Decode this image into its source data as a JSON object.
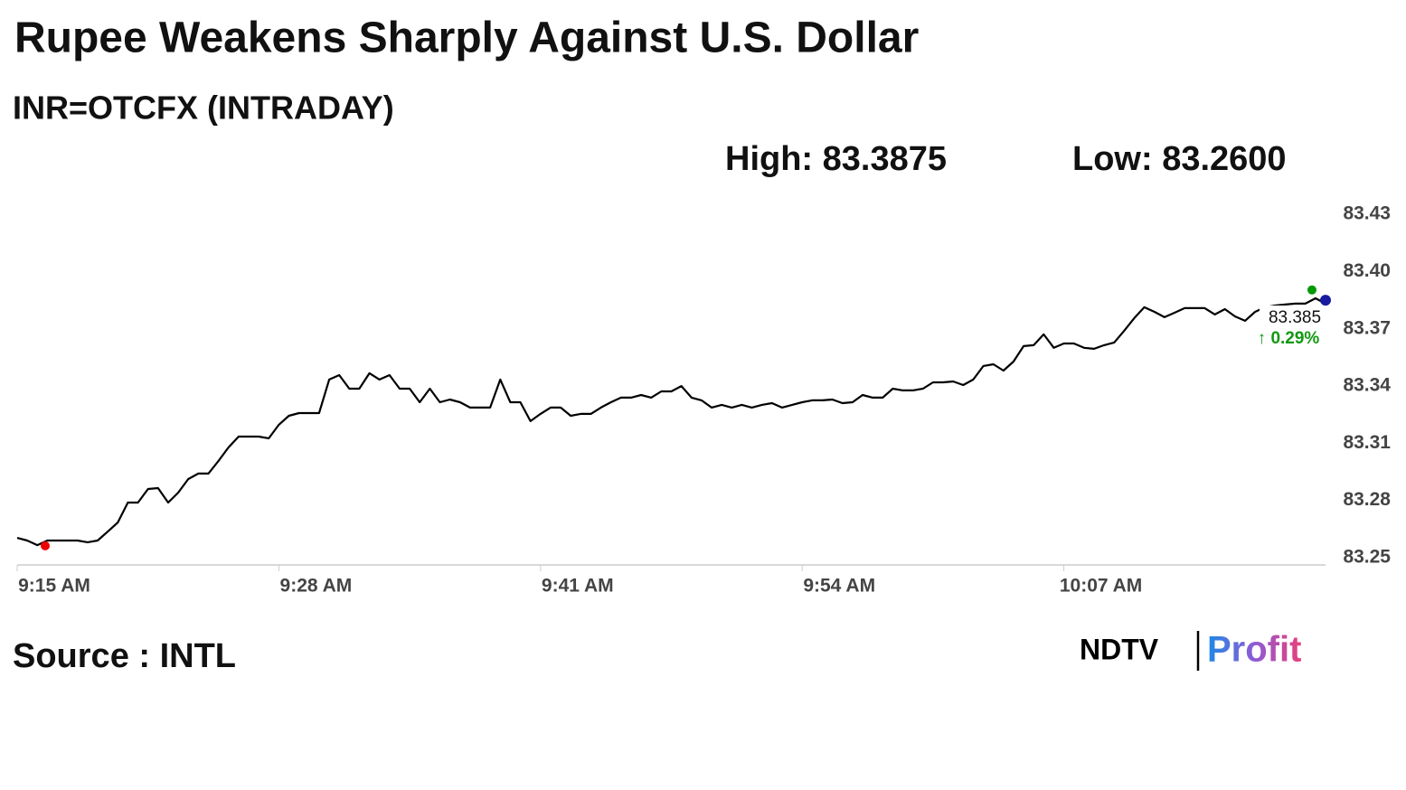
{
  "chart_data": {
    "type": "line",
    "title": "Rupee Weakens Sharply Against U.S. Dollar",
    "subtitle": "INR=OTCFX (INTRADAY)",
    "high_label": "High:",
    "high": {
      "value": 83.3875,
      "label": "83.3875"
    },
    "low_label": "Low:",
    "low": {
      "value": 83.26,
      "label": "83.2600"
    },
    "last": 83.385,
    "change": {
      "value": 0.29,
      "label": "↑ 0.29%"
    },
    "source": "Source : INTL",
    "brand": [
      "NDTV",
      "Profit"
    ],
    "grid": false,
    "ylim": [
      83.25,
      83.44
    ],
    "yticks": [
      83.25,
      83.28,
      83.31,
      83.34,
      83.37,
      {
        "value": 83.4,
        "label": "83.40"
      },
      83.43
    ],
    "categories": [
      "9:15 AM",
      null,
      null,
      null,
      null,
      null,
      null,
      null,
      null,
      null,
      null,
      null,
      null,
      null,
      null,
      null,
      null,
      null,
      null,
      null,
      null,
      null,
      null,
      null,
      null,
      null,
      "9:28 AM",
      null,
      null,
      null,
      null,
      null,
      null,
      null,
      null,
      null,
      null,
      null,
      null,
      null,
      null,
      null,
      null,
      null,
      null,
      null,
      null,
      null,
      null,
      null,
      null,
      null,
      "9:41 AM",
      null,
      null,
      null,
      null,
      null,
      null,
      null,
      null,
      null,
      null,
      null,
      null,
      null,
      null,
      null,
      null,
      null,
      null,
      null,
      null,
      null,
      null,
      null,
      null,
      null,
      "9:54 AM",
      null,
      null,
      null,
      null,
      null,
      null,
      null,
      null,
      null,
      null,
      null,
      null,
      null,
      null,
      null,
      null,
      null,
      null,
      null,
      null,
      null,
      null,
      null,
      null,
      null,
      "10:07 AM",
      null,
      null,
      null,
      null,
      null,
      null,
      null,
      null,
      null,
      null,
      null,
      null,
      null,
      null,
      null,
      null,
      null,
      null,
      null,
      null,
      null,
      null,
      null,
      null,
      null,
      null
    ],
    "series": [
      {
        "color": "#000000",
        "values": [
          83.2604,
          83.259,
          83.2566,
          83.259,
          83.259,
          83.259,
          83.259,
          83.2581,
          83.259,
          83.2637,
          83.2685,
          83.2789,
          83.2789,
          83.286,
          83.2865,
          83.2789,
          83.2841,
          83.2912,
          83.2941,
          83.2941,
          83.3007,
          83.3078,
          83.3135,
          83.3135,
          83.3135,
          83.3126,
          83.3197,
          83.3244,
          83.3258,
          83.3258,
          83.3258,
          83.3434,
          83.3457,
          83.3386,
          83.3386,
          83.3467,
          83.3434,
          83.3457,
          83.3386,
          83.3386,
          83.3315,
          83.3386,
          83.3315,
          83.3329,
          83.3315,
          83.3287,
          83.3287,
          83.3287,
          83.3434,
          83.3315,
          83.3315,
          83.3216,
          83.3254,
          83.3287,
          83.3287,
          83.3244,
          83.3254,
          83.3254,
          83.3287,
          83.3315,
          83.3339,
          83.3339,
          83.3353,
          83.3339,
          83.3372,
          83.3372,
          83.34,
          83.3339,
          83.3325,
          83.3287,
          83.3301,
          83.3287,
          83.3301,
          83.3287,
          83.3301,
          83.331,
          83.3287,
          83.3301,
          83.3315,
          83.3325,
          83.3325,
          83.3329,
          83.331,
          83.3315,
          83.3353,
          83.3339,
          83.3339,
          83.3386,
          83.3377,
          83.3377,
          83.3386,
          83.3419,
          83.3419,
          83.3424,
          83.3405,
          83.3434,
          83.3505,
          83.3514,
          83.3481,
          83.3528,
          83.3609,
          83.3614,
          83.3671,
          83.36,
          83.3623,
          83.3623,
          83.36,
          83.3595,
          83.3614,
          83.3628,
          83.369,
          83.3756,
          83.3813,
          83.3789,
          83.3761,
          83.3784,
          83.3808,
          83.3808,
          83.3808,
          83.3775,
          83.3803,
          83.3765,
          83.3742,
          83.3789,
          83.3813,
          83.3822,
          83.3827,
          83.3832,
          83.3832,
          83.386,
          83.3832
        ]
      }
    ]
  }
}
